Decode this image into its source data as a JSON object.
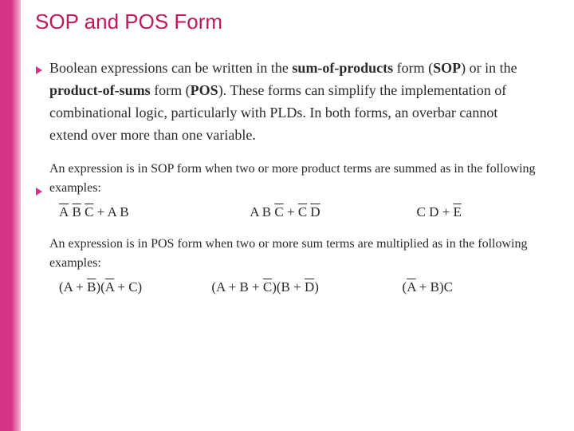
{
  "accent_color": "#d63384",
  "title": {
    "text": "SOP and POS Form",
    "color": "#c2185b",
    "fontsize": 26
  },
  "bullet_color": "#d63384",
  "para1": {
    "fontsize": 18,
    "seg1": "Boolean expressions can be written in the ",
    "bold1": "sum-of-products",
    "seg2": " form (",
    "bold2": "SOP",
    "seg3": ") or in the ",
    "bold3": "product-of-sums",
    "seg4": " form (",
    "bold4": "POS",
    "seg5": "). These forms can simplify the implementation of combinational logic, particularly with PLDs. In both forms, an overbar cannot extend over more than one variable."
  },
  "para2": {
    "fontsize": 16,
    "text": "An expression is in SOP form when two or more product terms are summed as in the following examples:"
  },
  "sop": {
    "fontsize": 17,
    "e1": {
      "t1": "A",
      "t2": "B",
      "t3": "C",
      "plus": " + ",
      "t4": "A B"
    },
    "e2": {
      "t1": "A B ",
      "t2": "C",
      "plus": " + ",
      "t3": "C",
      "sp": " ",
      "t4": "D"
    },
    "e3": {
      "t1": "C D + ",
      "t2": "E"
    }
  },
  "para3": {
    "fontsize": 16,
    "text": "An expression is in POS form when two or more sum terms are multiplied as in the following examples:"
  },
  "pos": {
    "fontsize": 17,
    "e1": {
      "t1": "(A + ",
      "t2": "B",
      "t3": ")(",
      "t4": "A",
      "t5": " + C)"
    },
    "e2": {
      "t1": "(A + B + ",
      "t2": "C",
      "t3": ")(B + ",
      "t4": "D",
      "t5": ")"
    },
    "e3": {
      "t1": "(",
      "t2": "A",
      "t3": " + B)C"
    }
  }
}
